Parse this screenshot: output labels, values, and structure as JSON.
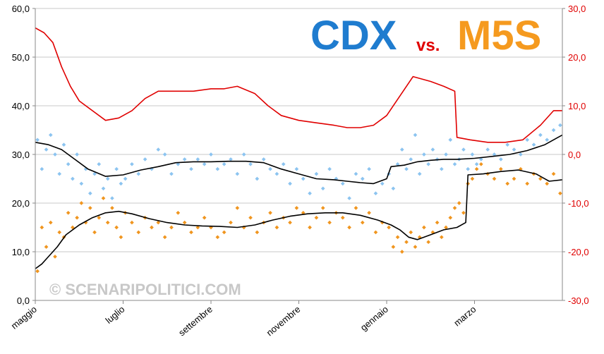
{
  "title": {
    "left": "CDX",
    "vs": "vs.",
    "right": "M5S"
  },
  "watermark": "© SCENARIPOLITICI.COM",
  "colors": {
    "cdx_title": "#1f7ccf",
    "vs": "#e00000",
    "m5s_title": "#f59a1f",
    "cdx_points": "#8cc4f0",
    "m5s_points": "#f0951e",
    "trend": "#000000",
    "diff_line": "#e00000",
    "right_axis": "#e00000",
    "grid": "#c8c8c8",
    "watermark": "#c8c8c8"
  },
  "chart_data": {
    "type": "scatter",
    "x_ticks": [
      "maggio",
      "luglio",
      "settembre",
      "novembre",
      "gennaio",
      "marzo"
    ],
    "x_tick_pos": [
      0,
      2,
      4,
      6,
      8,
      10
    ],
    "x_range": [
      0,
      12
    ],
    "y_left_ticks": [
      "0,0",
      "10,0",
      "20,0",
      "30,0",
      "40,0",
      "50,0",
      "60,0"
    ],
    "y_left_range": [
      0,
      60
    ],
    "y_right_ticks": [
      "-30,0",
      "-20,0",
      "-10,0",
      "0,0",
      "10,0",
      "20,0",
      "30,0"
    ],
    "y_right_range": [
      -30,
      30
    ],
    "grid": "horizontal",
    "series": [
      {
        "key": "cdx_trend",
        "axis": "left",
        "x": [
          0,
          0.3,
          0.6,
          0.9,
          1.2,
          1.6,
          2.0,
          2.4,
          2.8,
          3.2,
          3.6,
          4.0,
          4.4,
          4.8,
          5.2,
          5.6,
          6.0,
          6.4,
          6.8,
          7.1,
          7.4,
          7.7,
          8.0,
          8.1,
          8.4,
          8.7,
          9.0,
          9.3,
          9.6,
          10.0,
          10.4,
          10.8,
          11.2,
          11.6,
          11.9,
          12.0
        ],
        "values": [
          32.5,
          32.0,
          31.0,
          29.0,
          27.0,
          25.5,
          25.8,
          26.8,
          27.5,
          28.3,
          28.5,
          28.5,
          28.6,
          28.6,
          28.3,
          27.0,
          26.0,
          25.0,
          24.8,
          24.5,
          24.2,
          24.0,
          25.0,
          27.5,
          27.8,
          28.5,
          28.8,
          29.0,
          29.0,
          29.2,
          29.6,
          30.0,
          30.8,
          32.0,
          33.5,
          34.0
        ]
      },
      {
        "key": "m5s_trend",
        "axis": "left",
        "x": [
          0,
          0.15,
          0.3,
          0.5,
          0.7,
          1.0,
          1.3,
          1.6,
          1.9,
          2.2,
          2.6,
          3.0,
          3.4,
          3.8,
          4.2,
          4.6,
          5.0,
          5.4,
          5.8,
          6.2,
          6.6,
          7.0,
          7.4,
          7.8,
          8.1,
          8.3,
          8.5,
          8.7,
          9.0,
          9.3,
          9.6,
          9.8,
          9.85,
          10.2,
          10.6,
          11.0,
          11.4,
          11.7,
          12.0
        ],
        "values": [
          6.5,
          7.5,
          9.0,
          11.0,
          13.5,
          15.5,
          17.0,
          18.0,
          18.3,
          17.8,
          16.8,
          16.0,
          15.5,
          15.3,
          15.2,
          15.0,
          15.5,
          16.5,
          17.3,
          17.8,
          18.0,
          18.0,
          17.5,
          16.5,
          15.5,
          14.5,
          13.0,
          12.5,
          13.5,
          14.5,
          15.0,
          16.0,
          25.8,
          26.0,
          26.5,
          26.8,
          26.0,
          24.5,
          24.8
        ]
      },
      {
        "key": "diff",
        "axis": "right",
        "x": [
          0,
          0.2,
          0.4,
          0.6,
          0.8,
          1.0,
          1.3,
          1.6,
          1.9,
          2.2,
          2.5,
          2.8,
          3.2,
          3.6,
          4.0,
          4.3,
          4.6,
          5.0,
          5.3,
          5.6,
          6.0,
          6.4,
          6.8,
          7.1,
          7.4,
          7.7,
          8.0,
          8.3,
          8.6,
          9.0,
          9.3,
          9.55,
          9.6,
          9.9,
          10.3,
          10.7,
          11.1,
          11.5,
          11.8,
          12.0
        ],
        "values": [
          26.0,
          25.0,
          23.0,
          18.0,
          14.0,
          11.0,
          9.0,
          7.0,
          7.5,
          9.0,
          11.5,
          13.0,
          13.0,
          13.0,
          13.5,
          13.5,
          14.0,
          12.5,
          10.0,
          8.0,
          7.0,
          6.5,
          6.0,
          5.5,
          5.5,
          6.0,
          8.0,
          12.0,
          16.0,
          15.0,
          14.0,
          13.0,
          3.5,
          3.0,
          2.5,
          2.5,
          3.0,
          6.0,
          9.0,
          9.0
        ]
      },
      {
        "key": "cdx_points",
        "axis": "left",
        "style": "points",
        "x": [
          0.05,
          0.15,
          0.25,
          0.35,
          0.45,
          0.55,
          0.65,
          0.75,
          0.85,
          0.95,
          1.05,
          1.15,
          1.25,
          1.35,
          1.45,
          1.55,
          1.65,
          1.75,
          1.85,
          1.95,
          2.05,
          2.2,
          2.35,
          2.5,
          2.65,
          2.8,
          2.95,
          3.1,
          3.25,
          3.4,
          3.55,
          3.7,
          3.85,
          4.0,
          4.15,
          4.3,
          4.45,
          4.6,
          4.75,
          4.9,
          5.05,
          5.2,
          5.35,
          5.5,
          5.65,
          5.8,
          5.95,
          6.1,
          6.25,
          6.4,
          6.55,
          6.7,
          6.85,
          7.0,
          7.15,
          7.3,
          7.45,
          7.6,
          7.75,
          7.9,
          8.05,
          8.15,
          8.25,
          8.35,
          8.45,
          8.55,
          8.65,
          8.75,
          8.85,
          8.95,
          9.05,
          9.15,
          9.25,
          9.35,
          9.45,
          9.55,
          9.65,
          9.75,
          9.85,
          9.95,
          10.05,
          10.15,
          10.3,
          10.45,
          10.6,
          10.75,
          10.9,
          11.05,
          11.2,
          11.35,
          11.5,
          11.65,
          11.8,
          11.95
        ],
        "values": [
          33,
          27,
          31,
          34,
          30,
          26,
          32,
          28,
          25,
          30,
          24,
          27,
          22,
          26,
          28,
          23,
          25,
          21,
          27,
          24,
          25,
          28,
          26,
          29,
          27,
          31,
          30,
          26,
          28,
          29,
          27,
          29,
          28,
          30,
          27,
          28,
          29,
          26,
          30,
          28,
          25,
          29,
          27,
          26,
          28,
          24,
          27,
          25,
          22,
          26,
          23,
          27,
          25,
          24,
          21,
          26,
          25,
          27,
          22,
          24,
          26,
          23,
          28,
          31,
          27,
          29,
          34,
          26,
          30,
          28,
          31,
          29,
          27,
          30,
          33,
          28,
          29,
          31,
          27,
          30,
          28,
          29,
          31,
          30,
          29,
          32,
          31,
          30,
          33,
          32,
          34,
          33,
          35,
          36
        ]
      },
      {
        "key": "m5s_points",
        "axis": "left",
        "style": "points",
        "x": [
          0.05,
          0.15,
          0.25,
          0.35,
          0.45,
          0.55,
          0.65,
          0.75,
          0.85,
          0.95,
          1.05,
          1.15,
          1.25,
          1.35,
          1.45,
          1.55,
          1.65,
          1.75,
          1.85,
          1.95,
          2.05,
          2.2,
          2.35,
          2.5,
          2.65,
          2.8,
          2.95,
          3.1,
          3.25,
          3.4,
          3.55,
          3.7,
          3.85,
          4.0,
          4.15,
          4.3,
          4.45,
          4.6,
          4.75,
          4.9,
          5.05,
          5.2,
          5.35,
          5.5,
          5.65,
          5.8,
          5.95,
          6.1,
          6.25,
          6.4,
          6.55,
          6.7,
          6.85,
          7.0,
          7.15,
          7.3,
          7.45,
          7.6,
          7.75,
          7.9,
          8.05,
          8.15,
          8.25,
          8.35,
          8.45,
          8.55,
          8.65,
          8.75,
          8.85,
          8.95,
          9.05,
          9.15,
          9.25,
          9.35,
          9.45,
          9.55,
          9.65,
          9.75,
          9.85,
          9.95,
          10.05,
          10.15,
          10.3,
          10.45,
          10.6,
          10.75,
          10.9,
          11.05,
          11.2,
          11.35,
          11.5,
          11.65,
          11.8,
          11.95
        ],
        "values": [
          6,
          15,
          11,
          16,
          9,
          14,
          13,
          18,
          15,
          17,
          20,
          16,
          19,
          14,
          17,
          21,
          16,
          19,
          15,
          13,
          18,
          16,
          14,
          17,
          15,
          16,
          13,
          15,
          18,
          16,
          14,
          15,
          17,
          15,
          13,
          14,
          16,
          19,
          15,
          17,
          14,
          16,
          18,
          15,
          17,
          16,
          19,
          18,
          15,
          17,
          19,
          16,
          18,
          17,
          15,
          19,
          16,
          18,
          14,
          16,
          15,
          11,
          13,
          10,
          12,
          14,
          11,
          13,
          15,
          12,
          14,
          16,
          13,
          15,
          17,
          19,
          20,
          18,
          24,
          25,
          27,
          28,
          26,
          25,
          27,
          24,
          25,
          27,
          24,
          26,
          25,
          24,
          26,
          22
        ]
      }
    ]
  }
}
